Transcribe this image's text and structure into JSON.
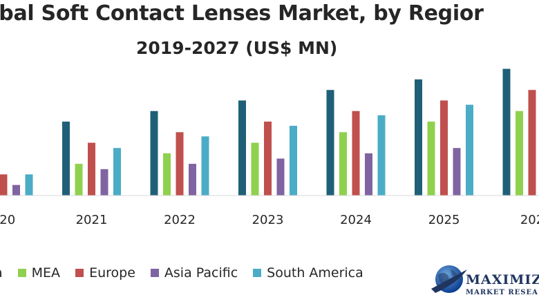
{
  "chart_data": {
    "type": "bar",
    "title": "obal Soft Contact Lenses Market, by Regior",
    "subtitle": "2019-2027 (US$ MN)",
    "categories": [
      "020",
      "2021",
      "2022",
      "2023",
      "2024",
      "2025",
      "202"
    ],
    "series": [
      {
        "name": "a",
        "color": "#1f6078",
        "values": [
          null,
          7,
          8,
          9,
          10,
          11,
          12
        ]
      },
      {
        "name": "MEA",
        "color": "#8fd14f",
        "values": [
          null,
          3,
          4,
          5,
          6,
          7,
          8
        ]
      },
      {
        "name": "Europe",
        "color": "#c0504d",
        "values": [
          2,
          5,
          6,
          7,
          8,
          9,
          10
        ]
      },
      {
        "name": "Asia Pacific",
        "color": "#8064a2",
        "values": [
          1,
          2.5,
          3,
          3.5,
          4,
          4.5,
          5
        ]
      },
      {
        "name": "South America",
        "color": "#4bacc6",
        "values": [
          2,
          4.5,
          5.6,
          6.6,
          7.6,
          8.6,
          9.6
        ]
      }
    ],
    "ylim": [
      0,
      12.3
    ],
    "grid": false,
    "legend": "bottom"
  },
  "logo": {
    "line1": "MAXIMIZ",
    "line2": "MARKET RESEA"
  }
}
